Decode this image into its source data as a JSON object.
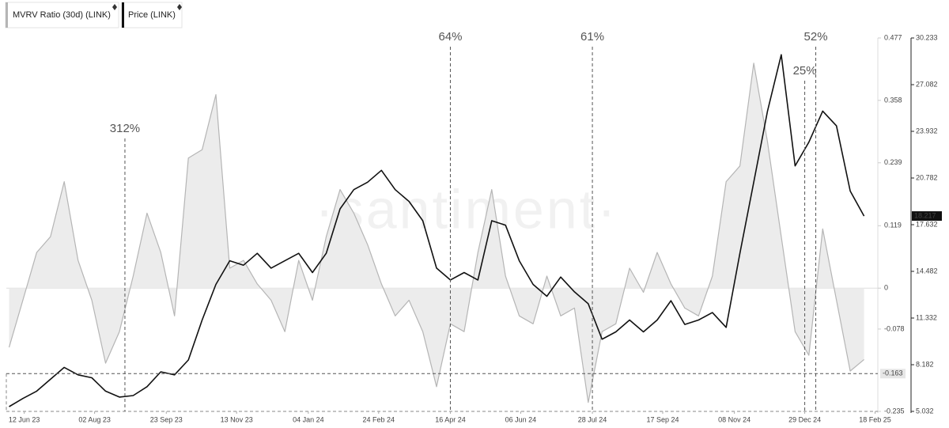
{
  "chart_data": {
    "type": "line",
    "watermark": "·santiment·",
    "x": [
      "2023-06-01",
      "2023-06-11",
      "2023-06-21",
      "2023-07-01",
      "2023-07-11",
      "2023-07-21",
      "2023-07-31",
      "2023-08-10",
      "2023-08-20",
      "2023-08-30",
      "2023-09-09",
      "2023-09-19",
      "2023-09-29",
      "2023-10-09",
      "2023-10-19",
      "2023-10-29",
      "2023-11-08",
      "2023-11-18",
      "2023-11-28",
      "2023-12-08",
      "2023-12-18",
      "2023-12-28",
      "2024-01-07",
      "2024-01-17",
      "2024-01-27",
      "2024-02-06",
      "2024-02-16",
      "2024-02-26",
      "2024-03-07",
      "2024-03-17",
      "2024-03-27",
      "2024-04-06",
      "2024-04-16",
      "2024-04-26",
      "2024-05-06",
      "2024-05-16",
      "2024-05-26",
      "2024-06-05",
      "2024-06-15",
      "2024-06-25",
      "2024-07-05",
      "2024-07-15",
      "2024-07-25",
      "2024-08-04",
      "2024-08-14",
      "2024-08-24",
      "2024-09-03",
      "2024-09-13",
      "2024-09-23",
      "2024-10-03",
      "2024-10-13",
      "2024-10-23",
      "2024-11-02",
      "2024-11-12",
      "2024-11-22",
      "2024-12-02",
      "2024-12-12",
      "2024-12-22",
      "2025-01-01",
      "2025-01-11",
      "2025-01-21",
      "2025-01-31",
      "2025-02-10"
    ],
    "xlim": [
      "2023-05-30",
      "2025-02-20"
    ],
    "xticks": [
      {
        "value": "2023-06-12",
        "label": "12 Jun 23"
      },
      {
        "value": "2023-08-02",
        "label": "02 Aug 23"
      },
      {
        "value": "2023-09-23",
        "label": "23 Sep 23"
      },
      {
        "value": "2023-11-13",
        "label": "13 Nov 23"
      },
      {
        "value": "2024-01-04",
        "label": "04 Jan 24"
      },
      {
        "value": "2024-02-24",
        "label": "24 Feb 24"
      },
      {
        "value": "2024-04-16",
        "label": "16 Apr 24"
      },
      {
        "value": "2024-06-06",
        "label": "06 Jun 24"
      },
      {
        "value": "2024-07-28",
        "label": "28 Jul 24"
      },
      {
        "value": "2024-09-17",
        "label": "17 Sep 24"
      },
      {
        "value": "2024-11-08",
        "label": "08 Nov 24"
      },
      {
        "value": "2024-12-29",
        "label": "29 Dec 24"
      },
      {
        "value": "2025-02-18",
        "label": "18 Feb 25"
      }
    ],
    "ylim": [
      -0.235,
      0.477
    ],
    "yticks": [
      0.477,
      0.358,
      0.239,
      0.119,
      0,
      -0.078,
      -0.235
    ],
    "y2lim": [
      5.032,
      30.233
    ],
    "y2ticks": [
      30.233,
      27.082,
      23.932,
      20.782,
      17.632,
      14.482,
      11.332,
      8.182,
      5.032
    ],
    "grid": false,
    "series": [
      {
        "name": "MVRV Ratio (30d) (LINK)",
        "color": "#b5b5b5",
        "fill": "#ececec",
        "values": [
          -0.113,
          -0.023,
          0.068,
          0.098,
          0.203,
          0.053,
          -0.023,
          -0.143,
          -0.083,
          0.023,
          0.143,
          0.068,
          -0.053,
          0.248,
          0.264,
          0.369,
          0.038,
          0.053,
          0.008,
          -0.023,
          -0.083,
          0.053,
          -0.023,
          0.098,
          0.188,
          0.143,
          0.083,
          0.008,
          -0.053,
          -0.023,
          -0.083,
          -0.188,
          -0.068,
          -0.083,
          0.068,
          0.188,
          0.023,
          -0.053,
          -0.068,
          0.023,
          -0.053,
          -0.038,
          -0.218,
          -0.083,
          -0.068,
          0.038,
          -0.008,
          0.068,
          0.008,
          -0.038,
          -0.053,
          0.023,
          0.203,
          0.233,
          0.429,
          0.279,
          0.098,
          -0.083,
          -0.128,
          0.113,
          -0.023,
          -0.158,
          -0.136
        ]
      },
      {
        "name": "Price (LINK)",
        "color": "#111111",
        "axis": "y2",
        "values": [
          5.35,
          5.9,
          6.4,
          7.2,
          8.0,
          7.5,
          7.3,
          6.4,
          6.0,
          6.1,
          6.7,
          7.7,
          7.5,
          8.5,
          11.2,
          13.6,
          15.2,
          14.9,
          15.7,
          14.7,
          15.2,
          15.7,
          14.4,
          15.7,
          18.7,
          20.0,
          20.5,
          21.3,
          20.0,
          19.2,
          17.9,
          14.7,
          13.9,
          14.4,
          13.9,
          17.9,
          17.6,
          15.2,
          13.6,
          12.8,
          14.1,
          13.1,
          12.3,
          9.9,
          10.4,
          11.2,
          10.4,
          11.2,
          12.5,
          10.9,
          11.2,
          11.7,
          10.7,
          15.7,
          20.5,
          25.3,
          29.1,
          21.6,
          23.2,
          25.3,
          24.3,
          19.9,
          18.217
        ]
      }
    ],
    "reference_lines": [
      {
        "axis": "y",
        "value": -0.163
      }
    ],
    "annotations": [
      {
        "x": "2023-08-24",
        "label": "312%"
      },
      {
        "x": "2024-04-16",
        "label": "64%"
      },
      {
        "x": "2024-07-28",
        "label": "61%"
      },
      {
        "x": "2024-12-29",
        "label": "25%"
      },
      {
        "x": "2025-01-06",
        "label": "52%"
      }
    ]
  }
}
